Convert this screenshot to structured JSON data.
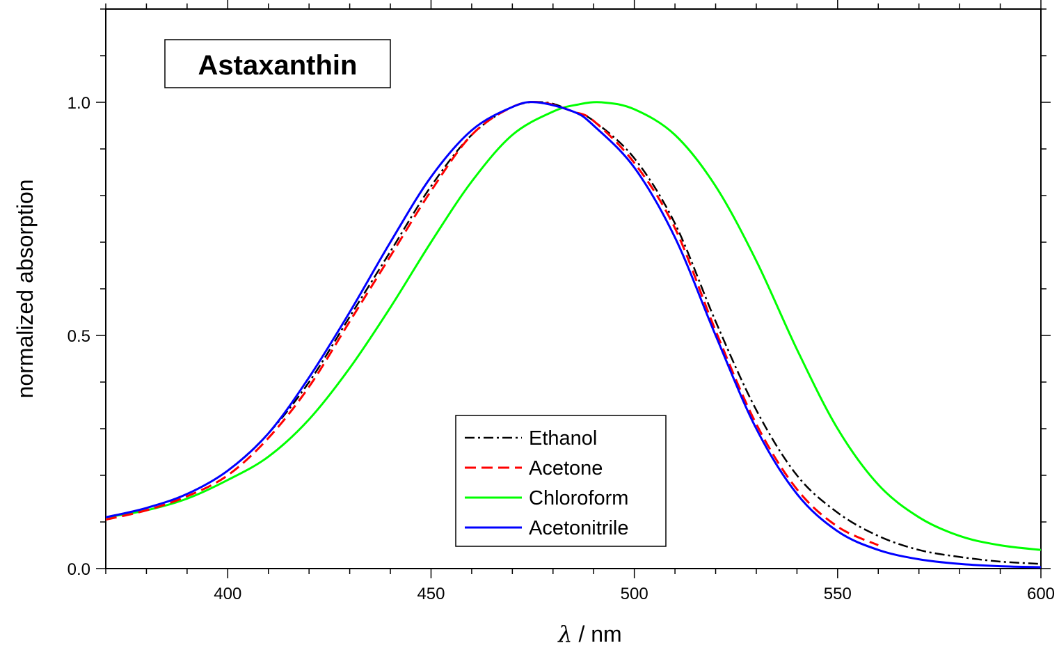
{
  "chart_data": {
    "type": "line",
    "title": "Astaxanthin",
    "xlabel_symbol": "λ",
    "xlabel_unit": " / nm",
    "ylabel": "normalized absorption",
    "xlim": [
      370,
      600
    ],
    "ylim": [
      0.0,
      1.2
    ],
    "x_ticks": [
      400,
      450,
      500,
      550,
      600
    ],
    "x_tick_labels": [
      "400",
      "450",
      "500",
      "550",
      "600"
    ],
    "y_ticks": [
      0.0,
      0.5,
      1.0
    ],
    "y_tick_labels": [
      "0.0",
      "0.5",
      "1.0"
    ],
    "x_minor_step": 10,
    "y_minor_step": 0.1,
    "grid": false,
    "legend_position": "bottom-center",
    "series": [
      {
        "name": "Ethanol",
        "color": "#000000",
        "style": "dashdot",
        "x": [
          370,
          380,
          390,
          400,
          410,
          420,
          430,
          440,
          450,
          460,
          470,
          478,
          485,
          490,
          500,
          510,
          520,
          530,
          540,
          550,
          560,
          570,
          580,
          590,
          600
        ],
        "y": [
          0.11,
          0.13,
          0.16,
          0.21,
          0.29,
          0.4,
          0.54,
          0.68,
          0.82,
          0.93,
          0.99,
          1.0,
          0.98,
          0.96,
          0.88,
          0.74,
          0.53,
          0.34,
          0.2,
          0.12,
          0.07,
          0.04,
          0.025,
          0.015,
          0.01
        ]
      },
      {
        "name": "Acetone",
        "color": "#ff0000",
        "style": "dashed",
        "x": [
          370,
          380,
          390,
          400,
          410,
          420,
          430,
          440,
          450,
          460,
          470,
          477,
          485,
          490,
          500,
          510,
          520,
          530,
          540,
          550,
          560
        ],
        "y": [
          0.105,
          0.125,
          0.155,
          0.2,
          0.28,
          0.39,
          0.53,
          0.67,
          0.81,
          0.93,
          0.99,
          1.0,
          0.98,
          0.96,
          0.87,
          0.73,
          0.51,
          0.31,
          0.17,
          0.09,
          0.05
        ]
      },
      {
        "name": "Chloroform",
        "color": "#00ff00",
        "style": "solid",
        "x": [
          370,
          380,
          390,
          400,
          410,
          420,
          430,
          440,
          450,
          460,
          470,
          480,
          486,
          492,
          500,
          510,
          520,
          530,
          540,
          550,
          560,
          570,
          580,
          590,
          600
        ],
        "y": [
          0.11,
          0.125,
          0.15,
          0.19,
          0.24,
          0.32,
          0.43,
          0.56,
          0.7,
          0.83,
          0.93,
          0.98,
          0.995,
          1.0,
          0.985,
          0.93,
          0.82,
          0.66,
          0.47,
          0.3,
          0.18,
          0.11,
          0.07,
          0.05,
          0.04
        ]
      },
      {
        "name": "Acetonitrile",
        "color": "#0000ff",
        "style": "solid",
        "x": [
          370,
          380,
          390,
          400,
          410,
          420,
          430,
          440,
          450,
          460,
          470,
          476,
          485,
          490,
          500,
          510,
          520,
          530,
          540,
          550,
          560,
          570,
          580,
          590,
          600
        ],
        "y": [
          0.11,
          0.13,
          0.16,
          0.21,
          0.29,
          0.41,
          0.55,
          0.7,
          0.84,
          0.94,
          0.99,
          1.0,
          0.98,
          0.95,
          0.86,
          0.71,
          0.5,
          0.3,
          0.16,
          0.08,
          0.04,
          0.02,
          0.01,
          0.005,
          0.003
        ]
      }
    ]
  }
}
